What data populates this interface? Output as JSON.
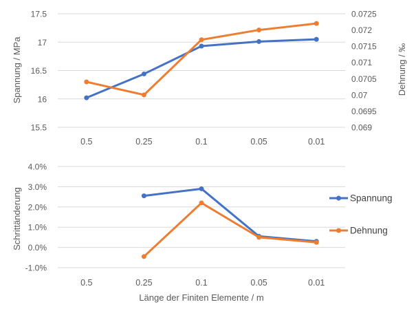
{
  "colors": {
    "spannung": "#4472C4",
    "dehnung": "#ED7D31",
    "gridline": "#D9D9D9",
    "tick_text": "#595959",
    "legend_text": "#404040",
    "background": "#FFFFFF"
  },
  "legend": {
    "items": [
      {
        "label": "Spannung",
        "color": "#4472C4"
      },
      {
        "label": "Dehnung",
        "color": "#ED7D31"
      }
    ],
    "position": "right"
  },
  "chart_data": [
    {
      "type": "line",
      "title": "",
      "categories": [
        "0.5",
        "0.25",
        "0.1",
        "0.05",
        "0.01"
      ],
      "grid": true,
      "markers": true,
      "y_left": {
        "label": "Spannung / MPa",
        "min": 15.5,
        "max": 17.5,
        "ticks": [
          "17.5",
          "17",
          "16.5",
          "16",
          "15.5"
        ]
      },
      "y_right": {
        "label": "Dehnung / ‰",
        "min": 0.069,
        "max": 0.0725,
        "ticks": [
          "0.0725",
          "0.072",
          "0.0715",
          "0.071",
          "0.0705",
          "0.07",
          "0.0695",
          "0.069"
        ]
      },
      "series": [
        {
          "name": "Spannung",
          "axis": "left",
          "color": "#4472C4",
          "values": [
            16.02,
            16.44,
            16.93,
            17.01,
            17.05
          ]
        },
        {
          "name": "Dehnung",
          "axis": "right",
          "color": "#ED7D31",
          "values": [
            0.0704,
            0.07,
            0.0717,
            0.072,
            0.0722
          ]
        }
      ]
    },
    {
      "type": "line",
      "title": "",
      "categories": [
        "0.5",
        "0.25",
        "0.1",
        "0.05",
        "0.01"
      ],
      "xlabel": "Länge der Finiten Elemente / m",
      "grid": true,
      "markers": true,
      "y_left": {
        "label": "Schrittänderung",
        "min": -1.0,
        "max": 4.0,
        "ticks": [
          "4.0%",
          "3.0%",
          "2.0%",
          "1.0%",
          "0.0%",
          "-1.0%"
        ]
      },
      "series": [
        {
          "name": "Spannung",
          "axis": "left",
          "color": "#4472C4",
          "values": [
            null,
            2.55,
            2.9,
            0.55,
            0.3
          ]
        },
        {
          "name": "Dehnung",
          "axis": "left",
          "color": "#ED7D31",
          "values": [
            null,
            -0.45,
            2.2,
            0.5,
            0.25
          ]
        }
      ]
    }
  ]
}
